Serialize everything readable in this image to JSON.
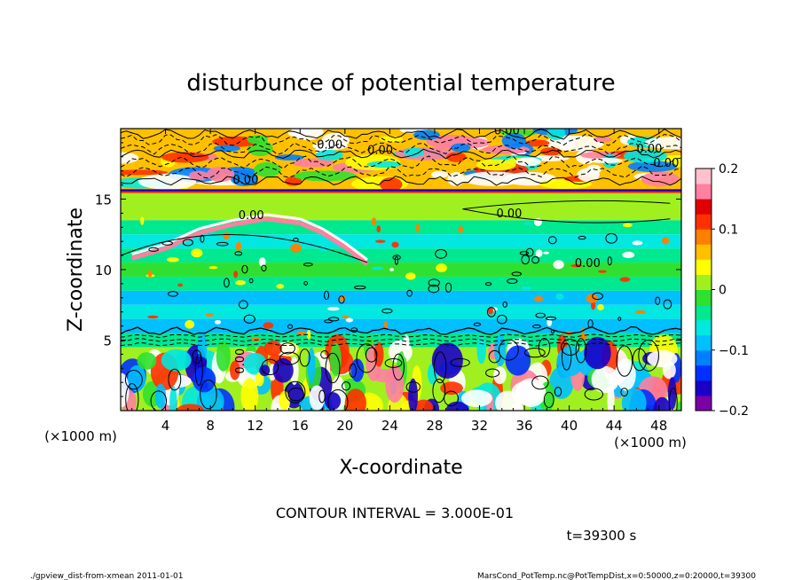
{
  "chart_data": {
    "type": "heatmap",
    "title": "disturbunce of potential temperature",
    "xlabel": "X-coordinate",
    "ylabel": "Z-coordinate",
    "x_unit_left": "(×1000 m)",
    "x_unit_right": "(×1000 m)",
    "xlim": [
      0,
      50
    ],
    "ylim": [
      0,
      20
    ],
    "x_ticks": [
      4,
      8,
      12,
      16,
      20,
      24,
      28,
      32,
      36,
      40,
      44,
      48
    ],
    "y_ticks": [
      5,
      10,
      15
    ],
    "colorbar": {
      "range": [
        -0.2,
        0.2
      ],
      "tick_values": [
        0.2,
        0.1,
        0,
        -0.1,
        -0.2
      ],
      "tick_labels": [
        "0.2",
        "0.1",
        "0",
        "−0.1",
        "−0.2"
      ],
      "colors": [
        "#7a00a8",
        "#1a00c8",
        "#0030ff",
        "#0080ff",
        "#00c0ff",
        "#00e8e0",
        "#00e890",
        "#30e030",
        "#a0f020",
        "#ffff00",
        "#ffc000",
        "#ff8000",
        "#ff3000",
        "#e00000",
        "#ff80a0",
        "#ffc0d0"
      ]
    },
    "contour_interval": "3.000E-01",
    "contour_labels": [
      "0.00",
      "0.00",
      "0.00",
      "0.00",
      "0.00",
      "0.00",
      "0.00",
      "0.00",
      "0.00",
      "0.00"
    ],
    "layers": [
      {
        "z_range": [
          15.5,
          20
        ],
        "description_values": "mixed",
        "value": 0.05
      },
      {
        "z_range": [
          13.5,
          15.5
        ],
        "value": 0.0
      },
      {
        "z_range": [
          12.5,
          13.5
        ],
        "value": -0.03
      },
      {
        "z_range": [
          11.5,
          12.5
        ],
        "value": -0.06
      },
      {
        "z_range": [
          10.5,
          11.5
        ],
        "value": -0.04
      },
      {
        "z_range": [
          9.5,
          10.5
        ],
        "value": -0.02
      },
      {
        "z_range": [
          8.5,
          9.5
        ],
        "value": -0.05
      },
      {
        "z_range": [
          7.5,
          8.5
        ],
        "value": -0.08
      },
      {
        "z_range": [
          6.5,
          7.5
        ],
        "value": -0.06
      },
      {
        "z_range": [
          5.5,
          6.5
        ],
        "value": -0.09
      },
      {
        "z_range": [
          4.5,
          5.5
        ],
        "value": -0.05
      },
      {
        "z_range": [
          0,
          4.5
        ],
        "value": 0.0
      }
    ]
  },
  "annotations": {
    "contour_interval_text": "CONTOUR INTERVAL = 3.000E-01",
    "time_text": "t=39300 s",
    "footer_left": "./gpview_dist-from-xmean 2011-01-01",
    "footer_right": "MarsCond_PotTemp.nc@PotTempDist,x=0:50000,z=0:20000,t=39300"
  }
}
